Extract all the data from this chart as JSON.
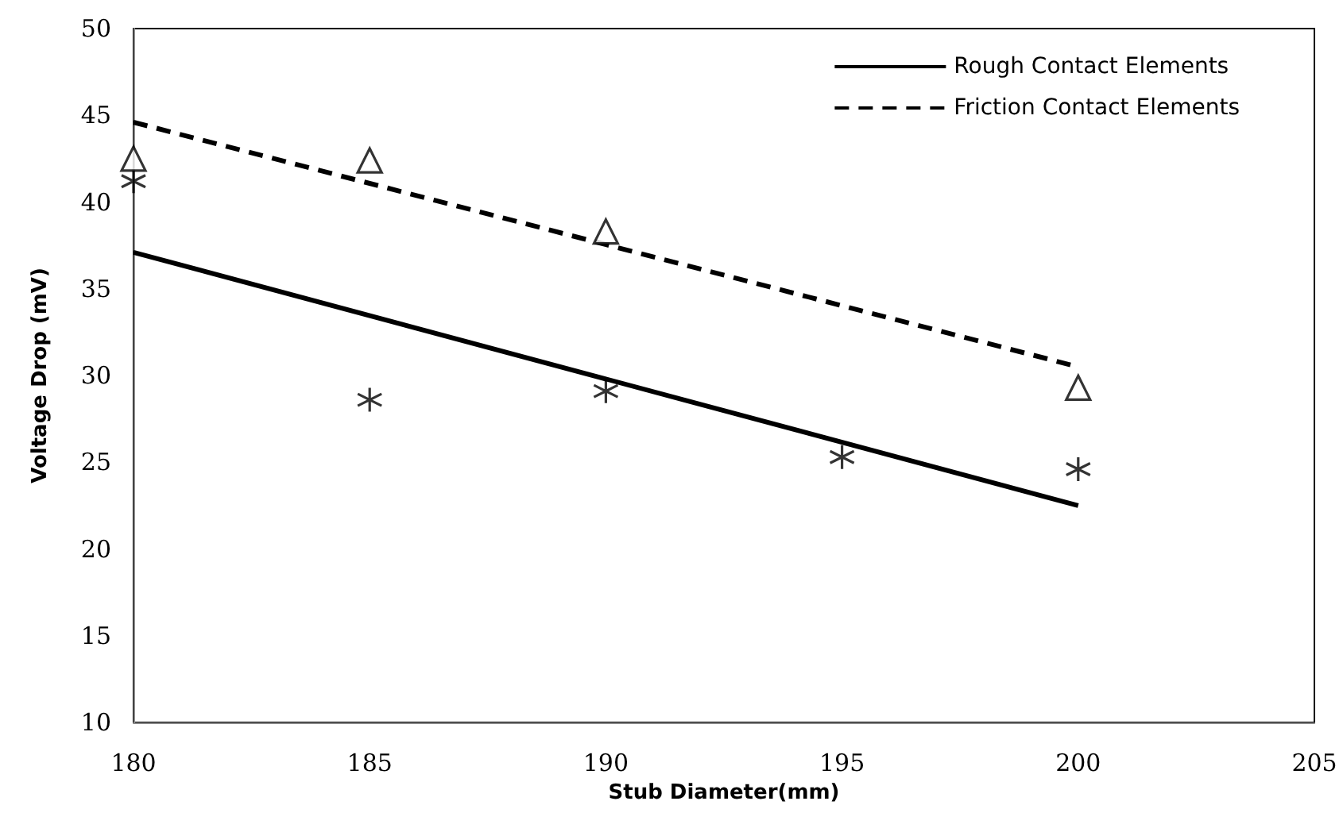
{
  "chart_data": {
    "type": "scatter",
    "xlabel": "Stub Diameter(mm)",
    "ylabel": "Voltage Drop (mV)",
    "xlim": [
      180,
      205
    ],
    "xticks": [
      180,
      185,
      190,
      195,
      200,
      205
    ],
    "ylim": [
      10,
      50
    ],
    "yticks": [
      10,
      15,
      20,
      25,
      30,
      35,
      40,
      45,
      50
    ],
    "grid": false,
    "legend": "top right",
    "series": [
      {
        "type": "scatter",
        "marker": "cross",
        "color": "#000000",
        "x": [
          180,
          185,
          190,
          195,
          200
        ],
        "values": [
          41.2,
          28.6,
          29.1,
          25.3,
          24.6
        ]
      },
      {
        "type": "scatter",
        "marker": "triangle",
        "color": "#000000",
        "x": [
          180,
          185,
          190,
          200
        ],
        "values": [
          42.5,
          42.4,
          38.3,
          29.3
        ]
      },
      {
        "type": "line",
        "name": "Rough Contact Elements",
        "line_style": "solid",
        "marker": "none",
        "color": "#000000",
        "x": [
          180,
          200
        ],
        "values": [
          37.1,
          22.5
        ]
      },
      {
        "type": "line",
        "name": "Friction Contact Elements",
        "line_style": "dashed",
        "marker": "none",
        "color": "#000000",
        "x": [
          180,
          200
        ],
        "values": [
          44.6,
          30.5
        ]
      }
    ]
  }
}
